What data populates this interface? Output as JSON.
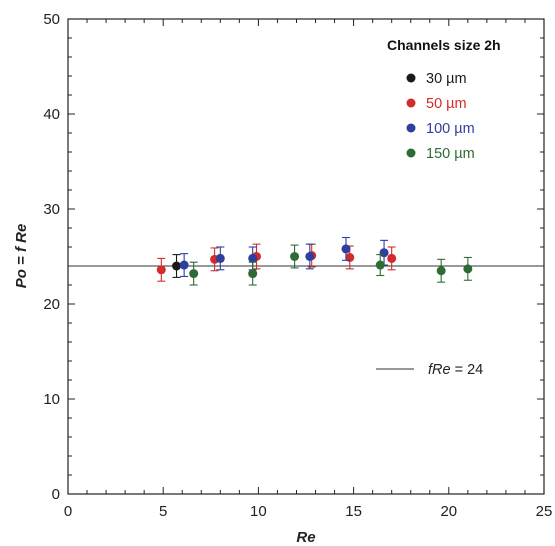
{
  "chart_data": {
    "type": "scatter",
    "xlabel": "Re",
    "ylabel": "Po = f Re",
    "xlim": [
      0,
      25
    ],
    "ylim": [
      0,
      50
    ],
    "x_ticks": [
      0,
      5,
      10,
      15,
      20,
      25
    ],
    "y_ticks": [
      0,
      10,
      20,
      30,
      40,
      50
    ],
    "legend": {
      "title": "Channels size 2h",
      "placement": "top-right"
    },
    "series": [
      {
        "name": "30 µm",
        "color": "#1a1a1a",
        "points": [
          {
            "x": 5.7,
            "y": 24.0,
            "err": 1.2
          }
        ]
      },
      {
        "name": "50 µm",
        "color": "#d22b2b",
        "points": [
          {
            "x": 4.9,
            "y": 23.6,
            "err": 1.2
          },
          {
            "x": 7.7,
            "y": 24.7,
            "err": 1.2
          },
          {
            "x": 9.9,
            "y": 25.0,
            "err": 1.3
          },
          {
            "x": 12.8,
            "y": 25.1,
            "err": 1.2
          },
          {
            "x": 14.8,
            "y": 24.9,
            "err": 1.2
          },
          {
            "x": 17.0,
            "y": 24.8,
            "err": 1.2
          }
        ]
      },
      {
        "name": "100 µm",
        "color": "#2e3f9e",
        "points": [
          {
            "x": 6.1,
            "y": 24.1,
            "err": 1.2
          },
          {
            "x": 8.0,
            "y": 24.8,
            "err": 1.2
          },
          {
            "x": 9.7,
            "y": 24.8,
            "err": 1.2
          },
          {
            "x": 12.7,
            "y": 25.0,
            "err": 1.3
          },
          {
            "x": 14.6,
            "y": 25.8,
            "err": 1.2
          },
          {
            "x": 16.6,
            "y": 25.4,
            "err": 1.3
          }
        ]
      },
      {
        "name": "150 µm",
        "color": "#2e6b35",
        "points": [
          {
            "x": 6.6,
            "y": 23.2,
            "err": 1.2
          },
          {
            "x": 9.7,
            "y": 23.2,
            "err": 1.2
          },
          {
            "x": 11.9,
            "y": 25.0,
            "err": 1.2
          },
          {
            "x": 16.4,
            "y": 24.1,
            "err": 1.1
          },
          {
            "x": 19.6,
            "y": 23.5,
            "err": 1.2
          },
          {
            "x": 21.0,
            "y": 23.7,
            "err": 1.2
          }
        ]
      }
    ],
    "reference_line": {
      "y": 24,
      "label_italic": "fRe",
      "label_rest": " = 24",
      "color": "#333333"
    }
  }
}
